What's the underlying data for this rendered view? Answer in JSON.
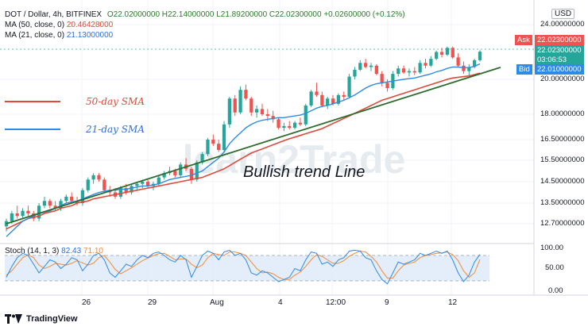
{
  "header": {
    "symbol": "DOT / Dollar, 4h, BITFINEX",
    "ohlc": "O22.02000000  H22.14000000  L21.89200000  C22.02300000  +0.02600000 (+0.12%)",
    "ma50_label": "MA (50, close, 0)",
    "ma50_value": "20.46428000",
    "ma21_label": "MA (21, close, 0)",
    "ma21_value": "21.13000000",
    "stoch_label": "Stoch (14, 1, 3)",
    "stoch_k": "82.43",
    "stoch_d": "71.10"
  },
  "currency": "USD",
  "price_axis": {
    "ticks": [
      "24.00000000",
      "20.00000000",
      "18.00000000",
      "16.50000000",
      "15.50000000",
      "14.50000000",
      "13.50000000",
      "12.70000000"
    ],
    "ask_label": "Ask",
    "ask_value": "22.02300000",
    "last_value": "22.02300000",
    "countdown": "03:06:53",
    "bid_label": "Bid",
    "bid_value": "22.01000000"
  },
  "stoch_axis": {
    "ticks": [
      "100.00",
      "50.00",
      "0.00"
    ]
  },
  "time_axis": {
    "ticks": [
      "26",
      "29",
      "Aug",
      "4",
      "12:00",
      "9",
      "12"
    ]
  },
  "annotations": {
    "sma50": "50-day SMA",
    "sma21": "21-day SMA",
    "trend": "Bullish trend Line"
  },
  "watermark": "learn2Trade",
  "brand": "TradingView",
  "colors": {
    "up": "#26a69a",
    "down": "#ef5350",
    "ma50": "#e0493a",
    "ma21": "#2f8ae6",
    "trend": "#2e6b2e",
    "stoch_k": "#2f8ae6",
    "stoch_d": "#f08a3c",
    "stoch_band": "#dbe8f8"
  },
  "chart_data": {
    "type": "candlestick",
    "timeframe": "4h",
    "y_ticks": [
      12.7,
      13.5,
      14.5,
      15.5,
      16.5,
      18,
      20,
      24
    ],
    "candles": [
      [
        12.6,
        12.9,
        12.4,
        12.8
      ],
      [
        12.8,
        13.2,
        12.7,
        13.1
      ],
      [
        13.1,
        13.4,
        12.9,
        13.0
      ],
      [
        13.0,
        13.3,
        12.9,
        13.2
      ],
      [
        13.2,
        13.4,
        13.0,
        13.1
      ],
      [
        13.1,
        13.2,
        12.8,
        12.9
      ],
      [
        12.9,
        13.5,
        12.8,
        13.4
      ],
      [
        13.4,
        13.8,
        13.3,
        13.6
      ],
      [
        13.6,
        13.7,
        13.3,
        13.4
      ],
      [
        13.4,
        13.6,
        13.2,
        13.3
      ],
      [
        13.3,
        13.7,
        13.2,
        13.6
      ],
      [
        13.6,
        13.9,
        13.5,
        13.8
      ],
      [
        13.8,
        14.0,
        13.5,
        13.6
      ],
      [
        13.6,
        13.8,
        13.4,
        13.5
      ],
      [
        13.5,
        14.2,
        13.4,
        14.1
      ],
      [
        14.1,
        14.7,
        14.0,
        14.6
      ],
      [
        14.6,
        14.9,
        14.4,
        14.8
      ],
      [
        14.8,
        14.9,
        14.5,
        14.6
      ],
      [
        14.6,
        14.7,
        14.0,
        14.1
      ],
      [
        14.1,
        14.3,
        13.8,
        14.0
      ],
      [
        14.0,
        14.2,
        13.7,
        13.8
      ],
      [
        13.8,
        14.3,
        13.7,
        14.2
      ],
      [
        14.2,
        14.4,
        13.9,
        14.0
      ],
      [
        14.0,
        14.4,
        13.9,
        14.3
      ],
      [
        14.3,
        14.5,
        14.1,
        14.4
      ],
      [
        14.4,
        14.6,
        14.2,
        14.5
      ],
      [
        14.5,
        14.6,
        14.2,
        14.3
      ],
      [
        14.3,
        14.5,
        14.1,
        14.4
      ],
      [
        14.4,
        14.8,
        14.3,
        14.7
      ],
      [
        14.7,
        15.0,
        14.6,
        14.9
      ],
      [
        14.9,
        15.2,
        14.8,
        15.0
      ],
      [
        15.0,
        15.1,
        14.7,
        14.8
      ],
      [
        14.8,
        15.4,
        14.7,
        15.3
      ],
      [
        15.3,
        15.6,
        15.0,
        15.1
      ],
      [
        15.1,
        15.2,
        14.4,
        14.6
      ],
      [
        14.6,
        15.5,
        14.5,
        15.4
      ],
      [
        15.4,
        15.9,
        15.3,
        15.8
      ],
      [
        15.8,
        16.6,
        15.7,
        16.5
      ],
      [
        16.5,
        16.8,
        16.2,
        16.3
      ],
      [
        16.3,
        16.5,
        15.9,
        16.0
      ],
      [
        16.0,
        17.6,
        15.9,
        17.4
      ],
      [
        17.4,
        19.0,
        17.2,
        18.9
      ],
      [
        18.9,
        19.1,
        17.9,
        18.1
      ],
      [
        18.1,
        19.6,
        18.0,
        19.4
      ],
      [
        19.4,
        19.7,
        18.8,
        18.9
      ],
      [
        18.9,
        19.0,
        17.9,
        18.1
      ],
      [
        18.1,
        18.5,
        17.8,
        18.3
      ],
      [
        18.3,
        18.6,
        17.9,
        18.0
      ],
      [
        18.0,
        18.3,
        17.6,
        17.9
      ],
      [
        17.9,
        18.2,
        17.5,
        17.7
      ],
      [
        17.7,
        17.8,
        17.1,
        17.2
      ],
      [
        17.2,
        17.5,
        17.0,
        17.3
      ],
      [
        17.3,
        17.6,
        17.1,
        17.2
      ],
      [
        17.2,
        17.6,
        17.1,
        17.5
      ],
      [
        17.5,
        17.8,
        17.3,
        17.4
      ],
      [
        17.4,
        18.6,
        17.3,
        18.5
      ],
      [
        18.5,
        19.4,
        18.4,
        19.3
      ],
      [
        19.3,
        19.8,
        19.0,
        19.1
      ],
      [
        19.1,
        19.3,
        18.4,
        18.5
      ],
      [
        18.5,
        19.0,
        18.3,
        18.9
      ],
      [
        18.9,
        19.1,
        18.5,
        18.6
      ],
      [
        18.6,
        19.2,
        18.5,
        19.1
      ],
      [
        19.1,
        19.3,
        18.8,
        19.0
      ],
      [
        19.0,
        20.4,
        18.9,
        20.2
      ],
      [
        20.2,
        20.9,
        20.0,
        20.7
      ],
      [
        20.7,
        21.4,
        20.6,
        21.2
      ],
      [
        21.2,
        21.5,
        20.8,
        20.9
      ],
      [
        20.9,
        21.2,
        20.6,
        21.0
      ],
      [
        21.0,
        21.1,
        20.3,
        20.4
      ],
      [
        20.4,
        20.6,
        19.6,
        19.8
      ],
      [
        19.8,
        20.0,
        19.3,
        19.5
      ],
      [
        19.5,
        20.6,
        19.4,
        20.4
      ],
      [
        20.4,
        21.0,
        20.2,
        20.8
      ],
      [
        20.8,
        21.0,
        20.4,
        20.5
      ],
      [
        20.5,
        20.8,
        20.2,
        20.6
      ],
      [
        20.6,
        20.9,
        20.3,
        20.5
      ],
      [
        20.5,
        21.4,
        20.4,
        21.2
      ],
      [
        21.2,
        21.5,
        20.8,
        21.0
      ],
      [
        21.0,
        21.7,
        20.9,
        21.5
      ],
      [
        21.5,
        22.1,
        21.4,
        22.0
      ],
      [
        22.0,
        22.3,
        21.6,
        21.8
      ],
      [
        21.8,
        22.4,
        21.7,
        22.3
      ],
      [
        22.3,
        22.4,
        21.5,
        21.6
      ],
      [
        21.6,
        21.9,
        20.9,
        21.0
      ],
      [
        21.0,
        21.3,
        20.4,
        20.6
      ],
      [
        20.6,
        21.1,
        20.2,
        20.9
      ],
      [
        20.9,
        21.5,
        20.8,
        21.4
      ],
      [
        21.4,
        22.14,
        21.3,
        22.02
      ]
    ],
    "ma50": [
      12.5,
      12.6,
      12.7,
      12.8,
      12.9,
      12.95,
      13.0,
      13.1,
      13.15,
      13.2,
      13.3,
      13.35,
      13.4,
      13.5,
      13.55,
      13.6,
      13.7,
      13.75,
      13.8,
      13.85,
      13.9,
      13.95,
      14.0,
      14.05,
      14.1,
      14.15,
      14.2,
      14.25,
      14.3,
      14.35,
      14.4,
      14.45,
      14.5,
      14.55,
      14.6,
      14.65,
      14.7,
      14.8,
      14.9,
      15.0,
      15.1,
      15.25,
      15.4,
      15.55,
      15.7,
      15.85,
      15.95,
      16.05,
      16.15,
      16.25,
      16.35,
      16.45,
      16.55,
      16.65,
      16.75,
      16.85,
      16.95,
      17.05,
      17.15,
      17.3,
      17.45,
      17.6,
      17.75,
      17.9,
      18.05,
      18.2,
      18.35,
      18.5,
      18.65,
      18.8,
      18.9,
      19.0,
      19.1,
      19.2,
      19.3,
      19.4,
      19.5,
      19.6,
      19.7,
      19.8,
      19.9,
      20.0,
      20.1,
      20.15,
      20.2,
      20.25,
      20.35,
      20.46
    ],
    "ma21": [
      12.2,
      12.4,
      12.6,
      12.8,
      12.9,
      13.0,
      13.1,
      13.15,
      13.2,
      13.3,
      13.4,
      13.5,
      13.55,
      13.6,
      13.7,
      13.8,
      13.9,
      14.0,
      14.05,
      14.1,
      14.1,
      14.15,
      14.15,
      14.2,
      14.25,
      14.3,
      14.3,
      14.35,
      14.4,
      14.5,
      14.6,
      14.65,
      14.7,
      14.75,
      14.8,
      14.9,
      15.0,
      15.2,
      15.4,
      15.6,
      15.9,
      16.3,
      16.6,
      16.9,
      17.2,
      17.4,
      17.55,
      17.65,
      17.7,
      17.75,
      17.8,
      17.8,
      17.85,
      17.9,
      17.95,
      18.05,
      18.2,
      18.35,
      18.45,
      18.5,
      18.6,
      18.7,
      18.8,
      18.95,
      19.1,
      19.3,
      19.5,
      19.65,
      19.75,
      19.8,
      19.85,
      19.9,
      19.95,
      20.0,
      20.05,
      20.1,
      20.2,
      20.3,
      20.4,
      20.55,
      20.65,
      20.8,
      20.9,
      20.9,
      20.85,
      20.85,
      20.95,
      21.13
    ],
    "stoch_k": [
      30,
      55,
      75,
      85,
      80,
      60,
      40,
      55,
      70,
      65,
      50,
      60,
      75,
      70,
      45,
      60,
      80,
      85,
      70,
      40,
      30,
      45,
      60,
      55,
      70,
      80,
      75,
      85,
      88,
      80,
      70,
      65,
      80,
      70,
      30,
      55,
      80,
      90,
      85,
      70,
      88,
      92,
      80,
      85,
      70,
      40,
      35,
      45,
      40,
      30,
      20,
      25,
      30,
      50,
      45,
      70,
      88,
      85,
      60,
      65,
      55,
      70,
      75,
      90,
      92,
      90,
      75,
      70,
      45,
      25,
      15,
      40,
      65,
      60,
      65,
      70,
      85,
      80,
      85,
      90,
      85,
      90,
      70,
      40,
      20,
      35,
      65,
      82.43
    ],
    "stoch_d": [
      35,
      45,
      60,
      75,
      82,
      75,
      58,
      50,
      55,
      62,
      60,
      58,
      62,
      68,
      63,
      58,
      62,
      75,
      80,
      65,
      48,
      38,
      45,
      52,
      60,
      68,
      74,
      80,
      84,
      85,
      78,
      70,
      72,
      72,
      60,
      52,
      58,
      75,
      85,
      82,
      80,
      88,
      88,
      85,
      80,
      65,
      50,
      40,
      42,
      38,
      30,
      25,
      25,
      35,
      42,
      55,
      70,
      82,
      78,
      70,
      62,
      62,
      68,
      78,
      85,
      90,
      88,
      78,
      65,
      45,
      28,
      28,
      45,
      58,
      62,
      65,
      75,
      80,
      82,
      85,
      86,
      88,
      82,
      68,
      45,
      30,
      40,
      71.1
    ],
    "trend_line": {
      "start": [
        0,
        12.7
      ],
      "end": [
        87,
        20.4
      ]
    }
  }
}
